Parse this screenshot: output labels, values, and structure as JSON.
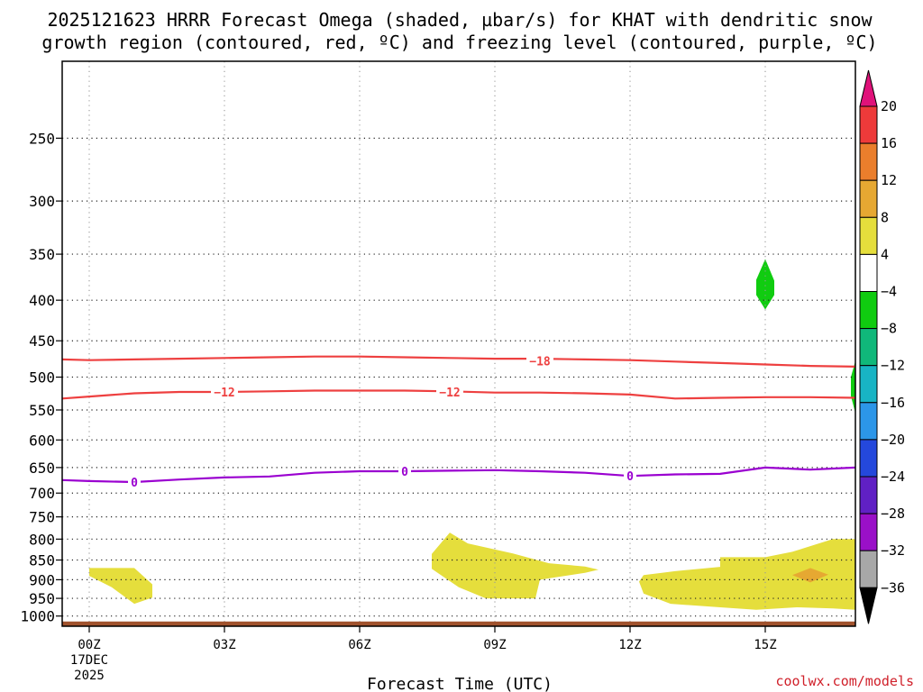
{
  "title": {
    "line1": "2025121623 HRRR Forecast Omega (shaded, µbar/s) for KHAT with dendritic snow",
    "line2": "growth region (contoured, red, ºC) and freezing level (contoured, purple, ºC)"
  },
  "credit": "coolwx.com/models",
  "chart_data": {
    "type": "time-height contour/filled",
    "title": "2025121623 HRRR Forecast Omega (shaded, µbar/s) for KHAT with dendritic snow growth region (contoured, red, ºC) and freezing level (contoured, purple, ºC)",
    "xlabel": "Forecast Time (UTC)",
    "ylabel": "",
    "x_range_hours": [
      -0.6,
      17
    ],
    "y_range_mb": [
      1030,
      200
    ],
    "y_scale": "log",
    "grid": "dotted",
    "x_ticks": [
      {
        "hour": 0,
        "label": "00Z",
        "sub1": "17DEC",
        "sub2": "2025"
      },
      {
        "hour": 3,
        "label": "03Z"
      },
      {
        "hour": 6,
        "label": "06Z"
      },
      {
        "hour": 9,
        "label": "09Z"
      },
      {
        "hour": 12,
        "label": "12Z"
      },
      {
        "hour": 15,
        "label": "15Z"
      }
    ],
    "y_ticks": [
      250,
      300,
      350,
      400,
      450,
      500,
      550,
      600,
      650,
      700,
      750,
      800,
      850,
      900,
      950,
      1000
    ],
    "ground_band": {
      "color": "#a0522d",
      "top_mb": 1016
    },
    "contours": [
      {
        "name": "-18",
        "color": "#ee4040",
        "label_positions": [
          {
            "hour": 10,
            "mb": 477
          }
        ],
        "points": [
          [
            -0.6,
            475
          ],
          [
            0,
            476
          ],
          [
            1,
            475
          ],
          [
            2,
            474
          ],
          [
            3,
            473
          ],
          [
            4,
            472
          ],
          [
            5,
            471
          ],
          [
            6,
            471
          ],
          [
            7,
            472
          ],
          [
            8,
            473
          ],
          [
            9,
            474
          ],
          [
            10,
            474
          ],
          [
            11,
            475
          ],
          [
            12,
            476
          ],
          [
            13,
            478
          ],
          [
            14,
            480
          ],
          [
            15,
            482
          ],
          [
            16,
            484
          ],
          [
            17,
            485
          ]
        ]
      },
      {
        "name": "-12",
        "color": "#ee4040",
        "label_positions": [
          {
            "hour": 3,
            "mb": 522
          },
          {
            "hour": 8,
            "mb": 522
          }
        ],
        "points": [
          [
            -0.6,
            532
          ],
          [
            0,
            529
          ],
          [
            1,
            524
          ],
          [
            2,
            522
          ],
          [
            3,
            522
          ],
          [
            4,
            521
          ],
          [
            5,
            520
          ],
          [
            6,
            520
          ],
          [
            7,
            520
          ],
          [
            8,
            521
          ],
          [
            9,
            523
          ],
          [
            10,
            523
          ],
          [
            11,
            524
          ],
          [
            12,
            526
          ],
          [
            13,
            532
          ],
          [
            14,
            531
          ],
          [
            15,
            530
          ],
          [
            16,
            530
          ],
          [
            17,
            531
          ]
        ]
      },
      {
        "name": "0",
        "color": "#9a00d0",
        "label_positions": [
          {
            "hour": 1,
            "mb": 678
          },
          {
            "hour": 7,
            "mb": 657
          },
          {
            "hour": 12,
            "mb": 666
          }
        ],
        "points": [
          [
            -0.6,
            674
          ],
          [
            0,
            676
          ],
          [
            1,
            678
          ],
          [
            2,
            673
          ],
          [
            3,
            669
          ],
          [
            4,
            667
          ],
          [
            5,
            660
          ],
          [
            6,
            657
          ],
          [
            7,
            657
          ],
          [
            8,
            656
          ],
          [
            9,
            655
          ],
          [
            10,
            657
          ],
          [
            11,
            660
          ],
          [
            12,
            666
          ],
          [
            13,
            663
          ],
          [
            14,
            662
          ],
          [
            15,
            650
          ],
          [
            16,
            654
          ],
          [
            17,
            650
          ]
        ]
      }
    ],
    "omega_regions": [
      {
        "value_range": [
          4,
          8
        ],
        "color": "#e5de3c",
        "points": [
          [
            0,
            870
          ],
          [
            1,
            870
          ],
          [
            1.4,
            912
          ],
          [
            1.4,
            948
          ],
          [
            1,
            965
          ],
          [
            0.5,
            920
          ],
          [
            0,
            890
          ]
        ]
      },
      {
        "value_range": [
          4,
          8
        ],
        "color": "#e5de3c",
        "points": [
          [
            7.6,
            835
          ],
          [
            8,
            785
          ],
          [
            8.4,
            810
          ],
          [
            9.4,
            834
          ],
          [
            10.2,
            858
          ],
          [
            11,
            866
          ],
          [
            11.3,
            874
          ],
          [
            11,
            882
          ],
          [
            10,
            900
          ],
          [
            9.9,
            950
          ],
          [
            9.6,
            950
          ],
          [
            8.8,
            950
          ],
          [
            8.2,
            920
          ],
          [
            7.6,
            872
          ]
        ]
      },
      {
        "value_range": [
          4,
          8
        ],
        "color": "#e5de3c",
        "points": [
          [
            12.3,
            888
          ],
          [
            13,
            878
          ],
          [
            14,
            867
          ],
          [
            14,
            843
          ],
          [
            15,
            843
          ],
          [
            15.6,
            830
          ],
          [
            16.5,
            800
          ],
          [
            17,
            800
          ],
          [
            17,
            982
          ],
          [
            16.5,
            978
          ],
          [
            15.7,
            975
          ],
          [
            14.8,
            982
          ],
          [
            14,
            975
          ],
          [
            12.9,
            965
          ],
          [
            12.3,
            937
          ],
          [
            12.2,
            905
          ]
        ]
      },
      {
        "value_range": [
          8,
          12
        ],
        "color": "#e6a832",
        "points": [
          [
            15.6,
            888
          ],
          [
            16,
            870
          ],
          [
            16.4,
            887
          ],
          [
            16,
            907
          ]
        ]
      },
      {
        "value_range": [
          -8,
          -4
        ],
        "color": "#10cc10",
        "points": [
          [
            15,
            355
          ],
          [
            15.2,
            378
          ],
          [
            15.2,
            394
          ],
          [
            15,
            411
          ],
          [
            14.8,
            394
          ],
          [
            14.8,
            377
          ]
        ]
      },
      {
        "value_range": [
          -8,
          -4
        ],
        "color": "#10cc10",
        "points": [
          [
            17,
            477
          ],
          [
            16.9,
            500
          ],
          [
            16.9,
            528
          ],
          [
            17,
            555
          ]
        ]
      }
    ],
    "colorbar": {
      "label": "µbar/s",
      "levels": [
        {
          "lo": 16,
          "hi": 20,
          "color": "#ee3a3a"
        },
        {
          "lo": 12,
          "hi": 16,
          "color": "#ea7e2c"
        },
        {
          "lo": 8,
          "hi": 12,
          "color": "#e6a832"
        },
        {
          "lo": 4,
          "hi": 8,
          "color": "#e5de3c"
        },
        {
          "lo": -4,
          "hi": 4,
          "color": "#ffffff"
        },
        {
          "lo": -8,
          "hi": -4,
          "color": "#10cc10"
        },
        {
          "lo": -12,
          "hi": -8,
          "color": "#10b87a"
        },
        {
          "lo": -16,
          "hi": -12,
          "color": "#18b4c4"
        },
        {
          "lo": -20,
          "hi": -16,
          "color": "#2c96e8"
        },
        {
          "lo": -24,
          "hi": -20,
          "color": "#2448dc"
        },
        {
          "lo": -28,
          "hi": -24,
          "color": "#6020c4"
        },
        {
          "lo": -32,
          "hi": -28,
          "color": "#9a10c8"
        },
        {
          "lo": -36,
          "hi": -32,
          "color": "#a8a8a8"
        }
      ],
      "over_color": "#e0127a",
      "under_color": "#000000",
      "tick_labels": [
        "20",
        "16",
        "12",
        "8",
        "4",
        "−4",
        "−8",
        "−12",
        "−16",
        "−20",
        "−24",
        "−28",
        "−32",
        "−36"
      ]
    }
  }
}
